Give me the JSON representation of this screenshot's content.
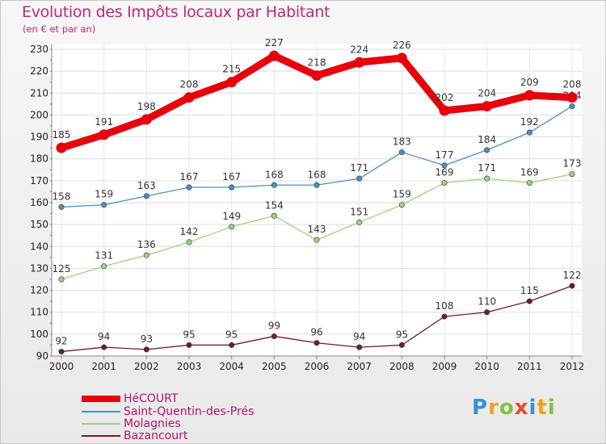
{
  "header": {
    "title": "Evolution des Impôts locaux par Habitant",
    "subtitle": "(en € et par an)"
  },
  "legend": [
    {
      "label": "HéCOURT",
      "color": "#e8000b"
    },
    {
      "label": "Saint-Quentin-des-Prés",
      "color": "#4a90c8"
    },
    {
      "label": "Molagnies",
      "color": "#99d67a"
    },
    {
      "label": "Bazancourt",
      "color": "#6e1f24"
    }
  ],
  "logo": {
    "letters": [
      "P",
      "r",
      "o",
      "x",
      "i",
      "t",
      "i"
    ],
    "colors": [
      "#3a8fd6",
      "#f2a21b",
      "#7cc242",
      "#e84a23",
      "#3a8fd6",
      "#f2a21b",
      "#7cc242"
    ]
  },
  "chart_data": {
    "type": "line",
    "title": "Evolution des Impôts locaux par Habitant",
    "subtitle": "(en € et par an)",
    "x": [
      "2000",
      "2001",
      "2002",
      "2003",
      "2004",
      "2005",
      "2006",
      "2007",
      "2008",
      "2009",
      "2010",
      "2011",
      "2012"
    ],
    "ylim": [
      90,
      230
    ],
    "yticks": [
      90,
      100,
      110,
      120,
      130,
      140,
      150,
      160,
      170,
      180,
      190,
      200,
      210,
      220,
      230
    ],
    "grid": true,
    "legend_position": "bottom-left",
    "series": [
      {
        "name": "HéCOURT",
        "color": "#e8000b",
        "values": [
          185,
          191,
          198,
          208,
          215,
          227,
          218,
          224,
          226,
          202,
          204,
          209,
          208
        ]
      },
      {
        "name": "Saint-Quentin-des-Prés",
        "color": "#4a90c8",
        "values": [
          158,
          159,
          163,
          167,
          167,
          168,
          168,
          171,
          183,
          177,
          184,
          192,
          204
        ]
      },
      {
        "name": "Molagnies",
        "color": "#99d67a",
        "values": [
          125,
          131,
          136,
          142,
          149,
          154,
          143,
          151,
          159,
          169,
          171,
          169,
          173
        ]
      },
      {
        "name": "Bazancourt",
        "color": "#6e1f24",
        "values": [
          92,
          94,
          93,
          95,
          95,
          99,
          96,
          94,
          95,
          108,
          110,
          115,
          122
        ]
      }
    ]
  }
}
